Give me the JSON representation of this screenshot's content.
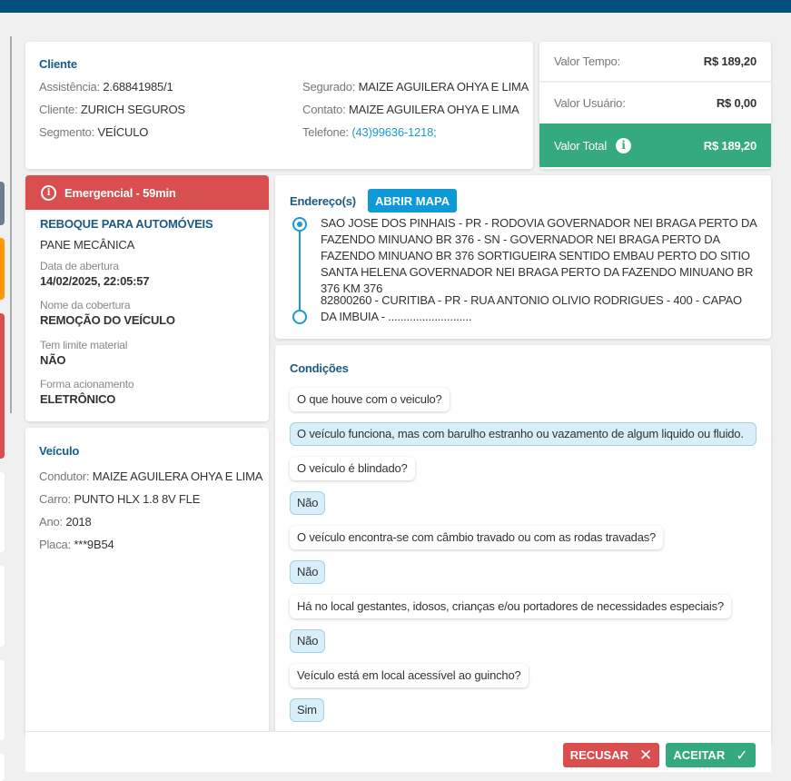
{
  "colors": {
    "header": "#03507d",
    "accent": "#1a5b86",
    "emergency": "#d94f4f",
    "success": "#35aa7f",
    "link": "#1a9bd7",
    "button": "#0d9ad6"
  },
  "cliente": {
    "title": "Cliente",
    "assistencia_label": "Assistência:",
    "assistencia": "2.68841985/1",
    "cliente_label": "Cliente:",
    "cliente": "ZURICH SEGUROS",
    "segmento_label": "Segmento:",
    "segmento": "VEÍCULO",
    "segurado_label": "Segurado:",
    "segurado": "MAIZE AGUILERA OHYA E LIMA",
    "contato_label": "Contato:",
    "contato": "MAIZE AGUILERA OHYA E LIMA",
    "telefone_label": "Telefone:",
    "telefone": "(43)99636-1218;"
  },
  "valores": {
    "tempo_label": "Valor Tempo:",
    "tempo": "R$ 189,20",
    "usuario_label": "Valor Usuário:",
    "usuario": "R$ 0,00",
    "total_label": "Valor Total",
    "total": "R$ 189,20",
    "info_icon": "info-icon"
  },
  "servico": {
    "badge": "Emergencial - 59min",
    "tipo": "REBOQUE PARA AUTOMÓVEIS",
    "motivo": "PANE MECÂNICA",
    "data_label": "Data de abertura",
    "data": "14/02/2025, 22:05:57",
    "cobertura_label": "Nome da cobertura",
    "cobertura": "REMOÇÃO DO VEÍCULO",
    "limite_label": "Tem limite material",
    "limite": "NÃO",
    "forma_label": "Forma acionamento",
    "forma": "ELETRÔNICO"
  },
  "veiculo": {
    "title": "Veículo",
    "condutor_label": "Condutor:",
    "condutor": "MAIZE AGUILERA OHYA E LIMA",
    "carro_label": "Carro:",
    "carro": "PUNTO HLX 1.8 8V FLE",
    "ano_label": "Ano:",
    "ano": "2018",
    "placa_label": "Placa:",
    "placa": "***9B54"
  },
  "enderecos": {
    "title": "Endereço(s)",
    "map_button": "ABRIR MAPA",
    "origem": "SAO JOSE DOS PINHAIS - PR - RODOVIA GOVERNADOR NEI BRAGA PERTO DA FAZENDO MINUANO BR 376 - SN - GOVERNADOR NEI BRAGA PERTO DA FAZENDO MINUANO BR 376 SORTIGUEIRA SENTIDO EMBAU PERTO DO SITIO SANTA HELENA GOVERNADOR NEI BRAGA PERTO DA FAZENDO MINUANO BR 376 KM 376",
    "destino": "82800260 - CURITIBA - PR - RUA ANTONIO OLIVIO RODRIGUES - 400 - CAPAO DA IMBUIA - ..........................."
  },
  "condicoes": {
    "title": "Condições",
    "items": [
      {
        "q": "O que houve com o veiculo?",
        "a": "O veículo funciona, mas com barulho estranho ou vazamento de algum liquido ou fluido."
      },
      {
        "q": "O veículo é blindado?",
        "a": "Não"
      },
      {
        "q": "O veículo encontra-se com câmbio travado ou com as rodas travadas?",
        "a": "Não"
      },
      {
        "q": "Há no local gestantes, idosos, crianças e/ou portadores de necessidades especiais?",
        "a": "Não"
      },
      {
        "q": "Veículo está em local acessível ao guincho?",
        "a": "Sim"
      }
    ]
  },
  "actions": {
    "recusar": "RECUSAR",
    "aceitar": "ACEITAR"
  }
}
